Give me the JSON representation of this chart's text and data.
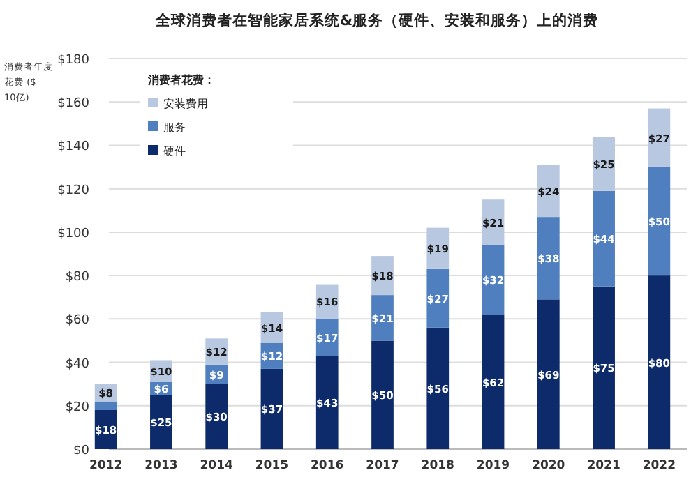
{
  "chart_data": {
    "type": "bar",
    "title": "全球消费者在智能家居系统&服务（硬件、安装和服务）上的消费",
    "ylabel": "消费者年度花费 ($10亿)",
    "legend_title": "消费者花费：",
    "stacked": true,
    "grid": "y",
    "legend": "top left",
    "categories": [
      "2012",
      "2013",
      "2014",
      "2015",
      "2016",
      "2017",
      "2018",
      "2019",
      "2020",
      "2021",
      "2022"
    ],
    "series": [
      {
        "name": "硬件",
        "color": "#0d2a6b",
        "values": [
          18,
          25,
          30,
          37,
          43,
          50,
          56,
          62,
          69,
          75,
          80
        ],
        "value_labels": [
          "$18",
          "$25",
          "$30",
          "$37",
          "$43",
          "$50",
          "$56",
          "$62",
          "$69",
          "$75",
          "$80"
        ]
      },
      {
        "name": "服务",
        "color": "#4f7fbf",
        "values": [
          4,
          6,
          9,
          12,
          17,
          21,
          27,
          32,
          38,
          44,
          50
        ],
        "value_labels": [
          null,
          "$6",
          "$9",
          "$12",
          "$17",
          "$21",
          "$27",
          "$32",
          "$38",
          "$44",
          "$50"
        ]
      },
      {
        "name": "安装费用",
        "color": "#b8c8e0",
        "values": [
          8,
          10,
          12,
          14,
          16,
          18,
          19,
          21,
          24,
          25,
          27
        ],
        "value_labels": [
          "$8",
          "$10",
          "$12",
          "$14",
          "$16",
          "$18",
          "$19",
          "$21",
          "$24",
          "$25",
          "$27"
        ]
      }
    ],
    "ylim": [
      0,
      180
    ],
    "yticks": [
      {
        "value": 0,
        "label": "$0"
      },
      {
        "value": 20,
        "label": "$20"
      },
      {
        "value": 40,
        "label": "$40"
      },
      {
        "value": 60,
        "label": "$60"
      },
      {
        "value": 80,
        "label": "$80"
      },
      {
        "value": 100,
        "label": "$100"
      },
      {
        "value": 120,
        "label": "$120"
      },
      {
        "value": 140,
        "label": "$140"
      },
      {
        "value": 160,
        "label": "$160"
      },
      {
        "value": 180,
        "label": "$180"
      }
    ]
  }
}
